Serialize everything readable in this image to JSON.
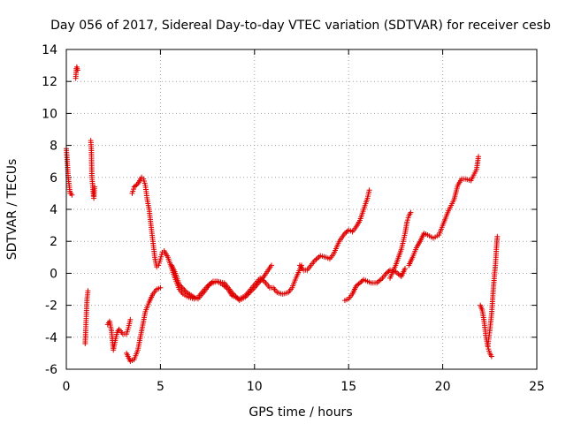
{
  "chart_data": {
    "type": "scatter",
    "title": "Day 056 of 2017, Sidereal Day-to-day VTEC variation (SDTVAR) for receiver cesb",
    "xlabel": "GPS time / hours",
    "ylabel": "SDTVAR / TECUs",
    "xlim": [
      0,
      25
    ],
    "ylim": [
      -6,
      14
    ],
    "xticks": [
      0,
      5,
      10,
      15,
      20,
      25
    ],
    "yticks": [
      -6,
      -4,
      -2,
      0,
      2,
      4,
      6,
      8,
      10,
      12,
      14
    ],
    "grid": true,
    "marker": "+",
    "color": "#e00000",
    "series": [
      {
        "name": "s1",
        "x": [
          0.0,
          0.05,
          0.1,
          0.15,
          0.2,
          0.25,
          0.3
        ],
        "y": [
          7.8,
          7.0,
          6.0,
          5.5,
          5.0,
          5.0,
          4.9
        ]
      },
      {
        "name": "s2",
        "x": [
          0.5,
          0.53,
          0.56,
          0.6
        ],
        "y": [
          12.2,
          12.8,
          12.9,
          12.7
        ]
      },
      {
        "name": "s3",
        "x": [
          1.0,
          1.03,
          1.06,
          1.1,
          1.15
        ],
        "y": [
          -4.4,
          -3.6,
          -2.7,
          -1.6,
          -1.1
        ]
      },
      {
        "name": "s4",
        "x": [
          1.3,
          1.33,
          1.36,
          1.4,
          1.43,
          1.46,
          1.5
        ],
        "y": [
          8.3,
          7.8,
          6.0,
          5.5,
          5.0,
          4.7,
          5.4
        ]
      },
      {
        "name": "s5",
        "x": [
          2.2,
          2.3,
          2.4,
          2.5,
          2.6,
          2.7,
          2.8,
          3.0,
          3.2,
          3.3,
          3.4
        ],
        "y": [
          -3.2,
          -3.0,
          -3.6,
          -4.8,
          -4.2,
          -3.7,
          -3.5,
          -3.8,
          -3.8,
          -3.4,
          -2.9
        ]
      },
      {
        "name": "s6",
        "x": [
          3.2,
          3.4,
          3.6,
          3.8,
          4.0,
          4.2,
          4.4,
          4.6,
          4.8,
          5.0
        ],
        "y": [
          -5.0,
          -5.5,
          -5.4,
          -4.8,
          -3.6,
          -2.4,
          -1.8,
          -1.3,
          -1.0,
          -0.9
        ]
      },
      {
        "name": "s7",
        "x": [
          3.5,
          3.6,
          3.8,
          4.0,
          4.1,
          4.2,
          4.3,
          4.4,
          4.5,
          4.6,
          4.7,
          4.8,
          4.9,
          5.0,
          5.1,
          5.2,
          5.4,
          5.6,
          5.8,
          6.0,
          6.2,
          6.5,
          6.8,
          7.0,
          7.2,
          7.5,
          7.8,
          8.0,
          8.3,
          8.6,
          8.8,
          9.0,
          9.2,
          9.5,
          9.8,
          10.0,
          10.3,
          10.6,
          10.8,
          11.0,
          11.2,
          11.5,
          11.8,
          12.0,
          12.2,
          12.5
        ],
        "y": [
          5.0,
          5.4,
          5.6,
          6.0,
          5.9,
          5.5,
          4.6,
          4.0,
          3.0,
          2.0,
          1.0,
          0.4,
          0.5,
          0.9,
          1.3,
          1.4,
          1.0,
          0.3,
          -0.4,
          -1.0,
          -1.3,
          -1.5,
          -1.6,
          -1.5,
          -1.2,
          -0.8,
          -0.5,
          -0.5,
          -0.7,
          -1.0,
          -1.4,
          -1.5,
          -1.6,
          -1.4,
          -1.0,
          -0.7,
          -0.3,
          -0.6,
          -0.9,
          -0.9,
          -1.2,
          -1.3,
          -1.2,
          -0.9,
          -0.3,
          0.5
        ]
      },
      {
        "name": "s8",
        "x": [
          5.6,
          5.8,
          6.0,
          6.4,
          6.8,
          7.0,
          7.3,
          7.6,
          8.0,
          8.4,
          8.8,
          9.2,
          9.5,
          10.0,
          10.5,
          10.9
        ],
        "y": [
          0.5,
          0.0,
          -0.7,
          -1.2,
          -1.5,
          -1.6,
          -1.2,
          -0.7,
          -0.5,
          -0.6,
          -1.2,
          -1.7,
          -1.5,
          -0.9,
          -0.2,
          0.5
        ]
      },
      {
        "name": "s9",
        "x": [
          12.4,
          12.6,
          12.8,
          13.0,
          13.2,
          13.5,
          13.8,
          14.0,
          14.2,
          14.5,
          14.8,
          15.0,
          15.2,
          15.4,
          15.6,
          15.8,
          16.0,
          16.1
        ],
        "y": [
          0.5,
          0.2,
          0.2,
          0.5,
          0.8,
          1.1,
          1.0,
          0.9,
          1.2,
          2.0,
          2.5,
          2.7,
          2.6,
          2.9,
          3.3,
          4.0,
          4.7,
          5.2
        ]
      },
      {
        "name": "s10",
        "x": [
          14.8,
          15.0,
          15.2,
          15.4,
          15.6,
          15.8,
          16.0,
          16.2,
          16.5,
          16.8,
          17.0,
          17.2,
          17.5,
          17.8,
          18.0
        ],
        "y": [
          -1.7,
          -1.6,
          -1.3,
          -0.8,
          -0.6,
          -0.4,
          -0.5,
          -0.6,
          -0.6,
          -0.3,
          0.0,
          0.2,
          0.1,
          -0.2,
          0.3
        ]
      },
      {
        "name": "s11",
        "x": [
          17.2,
          17.5,
          17.8,
          18.0,
          18.1,
          18.2,
          18.3
        ],
        "y": [
          -0.3,
          0.5,
          1.5,
          2.5,
          3.2,
          3.6,
          3.8
        ]
      },
      {
        "name": "s12",
        "x": [
          18.2,
          18.4,
          18.6,
          18.8,
          19.0,
          19.2,
          19.5,
          19.8,
          20.0,
          20.3,
          20.6,
          20.8,
          21.0,
          21.2,
          21.5,
          21.8,
          21.9
        ],
        "y": [
          0.5,
          1.0,
          1.6,
          2.0,
          2.5,
          2.4,
          2.2,
          2.4,
          3.0,
          3.9,
          4.6,
          5.5,
          5.9,
          5.9,
          5.8,
          6.5,
          7.3
        ]
      },
      {
        "name": "s13",
        "x": [
          22.0,
          22.1,
          22.2,
          22.3,
          22.4,
          22.5,
          22.6
        ],
        "y": [
          -2.0,
          -2.3,
          -3.0,
          -4.0,
          -4.6,
          -5.0,
          -5.2
        ]
      },
      {
        "name": "s14",
        "x": [
          22.4,
          22.5,
          22.6,
          22.7,
          22.8,
          22.85,
          22.9
        ],
        "y": [
          -4.5,
          -3.6,
          -2.5,
          -0.8,
          0.5,
          1.5,
          2.3
        ]
      }
    ]
  }
}
